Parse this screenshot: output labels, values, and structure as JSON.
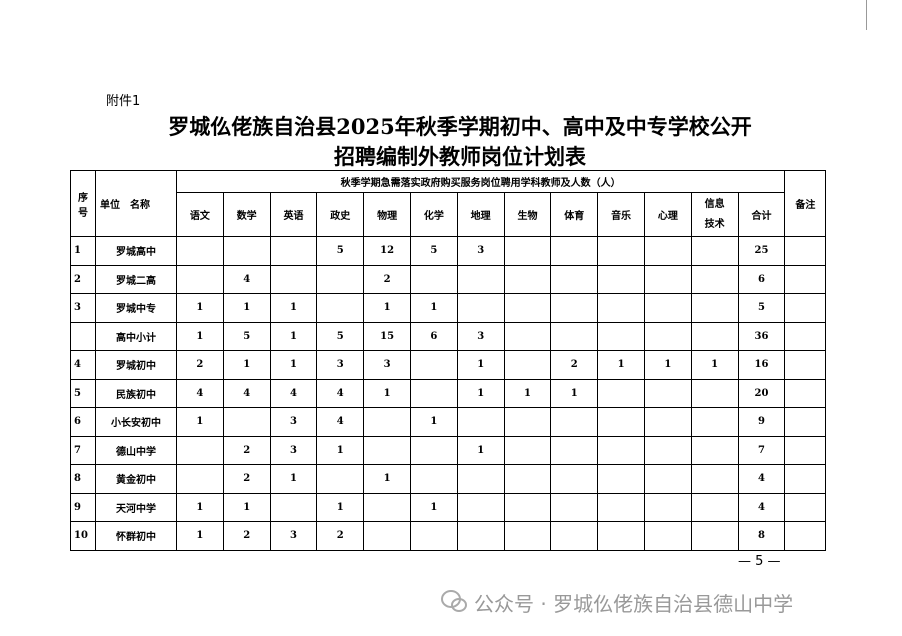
{
  "attachment": "附件1",
  "title": {
    "line1": "罗城仫佬族自治县2025年秋季学期初中、高中及中专学校公开",
    "line2": "招聘编制外教师岗位计划表"
  },
  "table": {
    "headers": {
      "no": "序号",
      "unit": "单位　名称",
      "group": "秋季学期急需落实政府购买服务岗位聘用学科教师及人数（人）",
      "remark": "备注",
      "subjects": [
        "语文",
        "数学",
        "英语",
        "政史",
        "物理",
        "化学",
        "地理",
        "生物",
        "体育",
        "音乐",
        "心理",
        "信息技术",
        "合计"
      ]
    },
    "rows": [
      [
        "1",
        "罗城高中",
        null,
        null,
        null,
        "5",
        "12",
        "5",
        "3",
        null,
        null,
        null,
        null,
        null,
        "25",
        null
      ],
      [
        "2",
        "罗城二高",
        null,
        "4",
        null,
        null,
        "2",
        null,
        null,
        null,
        null,
        null,
        null,
        null,
        "6",
        null
      ],
      [
        "3",
        "罗城中专",
        "1",
        "1",
        "1",
        null,
        "1",
        "1",
        null,
        null,
        null,
        null,
        null,
        null,
        "5",
        null
      ],
      [
        null,
        "高中小计",
        "1",
        "5",
        "1",
        "5",
        "15",
        "6",
        "3",
        null,
        null,
        null,
        null,
        null,
        "36",
        null
      ],
      [
        "4",
        "罗城初中",
        "2",
        "1",
        "1",
        "3",
        "3",
        null,
        "1",
        null,
        "2",
        "1",
        "1",
        "1",
        "16",
        null
      ],
      [
        "5",
        "民族初中",
        "4",
        "4",
        "4",
        "4",
        "1",
        null,
        "1",
        "1",
        "1",
        null,
        null,
        null,
        "20",
        null
      ],
      [
        "6",
        "小长安初中",
        "1",
        null,
        "3",
        "4",
        null,
        "1",
        null,
        null,
        null,
        null,
        null,
        null,
        "9",
        null
      ],
      [
        "7",
        "德山中学",
        null,
        "2",
        "3",
        "1",
        null,
        null,
        "1",
        null,
        null,
        null,
        null,
        null,
        "7",
        null
      ],
      [
        "8",
        "黄金初中",
        null,
        "2",
        "1",
        null,
        "1",
        null,
        null,
        null,
        null,
        null,
        null,
        null,
        "4",
        null
      ],
      [
        "9",
        "天河中学",
        "1",
        "1",
        null,
        "1",
        null,
        "1",
        null,
        null,
        null,
        null,
        null,
        null,
        "4",
        null
      ],
      [
        "10",
        "怀群初中",
        "1",
        "2",
        "3",
        "2",
        null,
        null,
        null,
        null,
        null,
        null,
        null,
        null,
        "8",
        null
      ]
    ]
  },
  "page_number": "— 5 —",
  "watermark": "公众号 · 罗城仫佬族自治县德山中学"
}
